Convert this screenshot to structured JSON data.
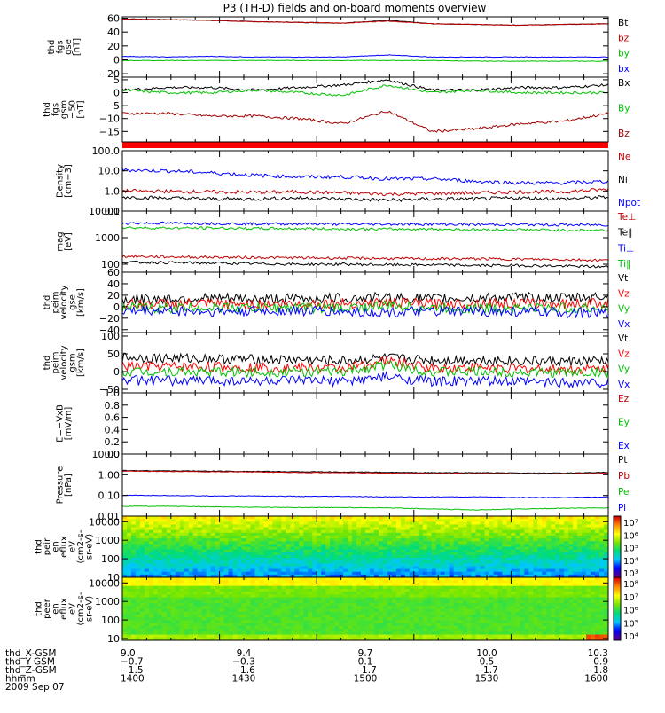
{
  "title": "P3 (TH-D) fields and on-board moments overview",
  "date": "2009 Sep 07",
  "ephemeris": {
    "rows": [
      {
        "name": "thd_X-GSM",
        "values": [
          "9.0",
          "9.4",
          "9.7",
          "10.0",
          "10.3"
        ]
      },
      {
        "name": "thd_Y-GSM",
        "values": [
          "−0.7",
          "−0.3",
          "0.1",
          "0.5",
          "0.9"
        ]
      },
      {
        "name": "thd_Z-GSM",
        "values": [
          "−1.5",
          "−1.6",
          "−1.7",
          "−1.7",
          "−1.8"
        ]
      },
      {
        "name": "hhmm",
        "values": [
          "1400",
          "1430",
          "1500",
          "1530",
          "1600"
        ]
      }
    ]
  },
  "chart_data": [
    {
      "type": "line",
      "ylabel": [
        "thd",
        "fgs",
        "gse",
        "[nT]"
      ],
      "ylim": [
        -25,
        62
      ],
      "ticks": [
        "60",
        "40",
        "20",
        "0",
        "−20"
      ],
      "tick_values": [
        60,
        40,
        20,
        0,
        -20
      ],
      "series": [
        {
          "name": "Bt",
          "color": "#000000",
          "values": [
            59,
            58,
            57,
            55,
            54,
            53,
            57,
            52,
            51,
            50,
            51,
            52
          ]
        },
        {
          "name": "bz",
          "color": "#c00000",
          "values": [
            59,
            58,
            57,
            55,
            54,
            53,
            56,
            52,
            51,
            50,
            51,
            52
          ]
        },
        {
          "name": "by",
          "color": "#00c000",
          "values": [
            -1,
            -1,
            -1,
            -1,
            -1,
            -1,
            -1,
            -1,
            -2,
            -2,
            -2,
            -2
          ]
        },
        {
          "name": "bx",
          "color": "#0000ff",
          "values": [
            5,
            4,
            5,
            4,
            4,
            4,
            7,
            4,
            4,
            4,
            4,
            4
          ]
        }
      ]
    },
    {
      "type": "line",
      "ylabel": [
        "thd",
        "fgs",
        "gsm",
        "−50",
        "[nT]"
      ],
      "ylim": [
        -19,
        6
      ],
      "ticks": [
        "5",
        "0",
        "−5",
        "−10",
        "−15"
      ],
      "tick_values": [
        5,
        0,
        -5,
        -10,
        -15
      ],
      "series": [
        {
          "name": "Bx",
          "color": "#000000",
          "values": [
            1,
            2,
            2,
            1,
            2,
            3,
            5,
            1,
            1,
            2,
            2,
            3
          ]
        },
        {
          "name": "By",
          "color": "#00c000",
          "values": [
            1,
            0,
            0,
            1,
            0,
            -1,
            3,
            0,
            1,
            0,
            0,
            0
          ]
        },
        {
          "name": "Bz",
          "color": "#a00000",
          "values": [
            -8,
            -8,
            -9,
            -9,
            -10,
            -12,
            -7,
            -15,
            -14,
            -12,
            -11,
            -8
          ]
        }
      ]
    },
    {
      "type": "line",
      "ylabel": [
        "Density",
        "[cm−3]"
      ],
      "scale": "log",
      "ylim": [
        0.1,
        100
      ],
      "ticks": [
        "100.0",
        "10.0",
        "1.0",
        "0.1"
      ],
      "tick_values": [
        100,
        10,
        1,
        0.1
      ],
      "series": [
        {
          "name": "Ne",
          "color": "#c00000",
          "values": [
            1.0,
            0.95,
            0.9,
            0.85,
            0.9,
            0.8,
            0.7,
            0.75,
            0.8,
            0.9,
            0.9,
            1.2
          ]
        },
        {
          "name": "Ni",
          "color": "#000000",
          "values": [
            0.5,
            0.45,
            0.4,
            0.4,
            0.45,
            0.4,
            0.35,
            0.4,
            0.4,
            0.45,
            0.4,
            0.5
          ]
        },
        {
          "name": "Npot",
          "color": "#0000ff",
          "values": [
            11,
            10,
            8,
            6,
            5,
            5,
            4,
            4,
            3,
            2.5,
            2.5,
            3
          ]
        }
      ]
    },
    {
      "type": "line",
      "ylabel": [
        "mag",
        "[eV]"
      ],
      "scale": "log",
      "ylim": [
        50,
        10000
      ],
      "ticks": [
        "10000",
        "1000",
        "100"
      ],
      "tick_values": [
        10000,
        1000,
        100
      ],
      "series": [
        {
          "name": "Te⊥",
          "color": "#c00000",
          "values": [
            200,
            190,
            185,
            180,
            175,
            170,
            165,
            160,
            160,
            155,
            150,
            140
          ]
        },
        {
          "name": "Te∥",
          "color": "#000000",
          "values": [
            120,
            115,
            110,
            105,
            100,
            100,
            95,
            95,
            90,
            90,
            85,
            80
          ]
        },
        {
          "name": "Ti⊥",
          "color": "#0000ff",
          "values": [
            3500,
            3500,
            3400,
            3300,
            3300,
            3200,
            3200,
            3200,
            3100,
            3100,
            3000,
            3000
          ]
        },
        {
          "name": "Ti∥",
          "color": "#00c000",
          "values": [
            2400,
            2300,
            2300,
            2200,
            2200,
            2100,
            2100,
            2100,
            2000,
            2000,
            1900,
            1900
          ]
        }
      ]
    },
    {
      "type": "line",
      "ylabel": [
        "thd",
        "peim",
        "velocity",
        "gse",
        "[km/s]"
      ],
      "ylim": [
        -45,
        60
      ],
      "ticks": [
        "60",
        "40",
        "20",
        "0",
        "−20",
        "−40"
      ],
      "tick_values": [
        60,
        40,
        20,
        0,
        -20,
        -40
      ],
      "series": [
        {
          "name": "Vt",
          "color": "#000000",
          "values": [
            12,
            14,
            15,
            13,
            14,
            15,
            16,
            14,
            15,
            16,
            15,
            18
          ]
        },
        {
          "name": "Vz",
          "color": "#ff0000",
          "values": [
            4,
            5,
            5,
            4,
            5,
            6,
            7,
            5,
            6,
            6,
            5,
            7
          ]
        },
        {
          "name": "Vy",
          "color": "#00c000",
          "values": [
            -2,
            -2,
            -1,
            -2,
            -1,
            -3,
            2,
            -2,
            -3,
            -2,
            -2,
            -3
          ]
        },
        {
          "name": "Vx",
          "color": "#0000ff",
          "values": [
            -8,
            -7,
            -9,
            -8,
            -7,
            -9,
            -10,
            -9,
            -8,
            -9,
            -10,
            -12
          ]
        }
      ]
    },
    {
      "type": "line",
      "ylabel": [
        "thd",
        "peim",
        "velocity",
        "gsm",
        "[km/s]"
      ],
      "ylim": [
        -60,
        110
      ],
      "ticks": [
        "100",
        "50",
        "0",
        "−50"
      ],
      "tick_values": [
        100,
        50,
        0,
        -50
      ],
      "series": [
        {
          "name": "Vt",
          "color": "#000000",
          "values": [
            40,
            38,
            36,
            34,
            33,
            30,
            38,
            32,
            33,
            30,
            28,
            30
          ]
        },
        {
          "name": "Vz",
          "color": "#ff0000",
          "values": [
            15,
            14,
            13,
            12,
            10,
            9,
            30,
            10,
            12,
            8,
            6,
            8
          ]
        },
        {
          "name": "Vy",
          "color": "#00c000",
          "values": [
            0,
            0,
            -1,
            -2,
            0,
            -2,
            20,
            -1,
            0,
            -2,
            -3,
            -2
          ]
        },
        {
          "name": "Vx",
          "color": "#0000ff",
          "values": [
            -25,
            -26,
            -25,
            -27,
            -26,
            -28,
            -15,
            -28,
            -27,
            -29,
            -30,
            -31
          ]
        }
      ]
    },
    {
      "type": "line",
      "ylabel": [
        "E=−VxB",
        "[mV/m]"
      ],
      "ylim": [
        0,
        1.0
      ],
      "ticks": [
        "1.0",
        "0.8",
        "0.6",
        "0.4",
        "0.2",
        "0.0"
      ],
      "tick_values": [
        1.0,
        0.8,
        0.6,
        0.4,
        0.2,
        0.0
      ],
      "series": [
        {
          "name": "Ez",
          "color": "#c00000",
          "values": []
        },
        {
          "name": "Ey",
          "color": "#00c000",
          "values": []
        },
        {
          "name": "Ex",
          "color": "#0000ff",
          "values": []
        }
      ]
    },
    {
      "type": "line",
      "ylabel": [
        "Pressure",
        "[nPa]"
      ],
      "scale": "log",
      "ylim": [
        0.01,
        10
      ],
      "ticks": [
        "10.00",
        "1.00",
        "0.10",
        "0.01"
      ],
      "tick_values": [
        10,
        1,
        0.1,
        0.01
      ],
      "series": [
        {
          "name": "Pt",
          "color": "#000000",
          "values": [
            1.6,
            1.55,
            1.5,
            1.45,
            1.4,
            1.35,
            1.3,
            1.25,
            1.25,
            1.2,
            1.2,
            1.3
          ]
        },
        {
          "name": "Pb",
          "color": "#c00000",
          "values": [
            1.5,
            1.45,
            1.4,
            1.35,
            1.3,
            1.25,
            1.2,
            1.15,
            1.15,
            1.1,
            1.1,
            1.2
          ]
        },
        {
          "name": "Pe",
          "color": "#00c000",
          "values": [
            0.03,
            0.03,
            0.028,
            0.027,
            0.026,
            0.026,
            0.025,
            0.022,
            0.02,
            0.022,
            0.024,
            0.025
          ]
        },
        {
          "name": "Pi",
          "color": "#0000ff",
          "values": [
            0.1,
            0.1,
            0.095,
            0.095,
            0.09,
            0.09,
            0.085,
            0.085,
            0.085,
            0.08,
            0.08,
            0.085
          ]
        }
      ]
    },
    {
      "type": "heatmap",
      "ylabel": [
        "thd",
        "peir",
        "en",
        "eflux",
        "eV",
        "(cm2-s-",
        "sr-eV)"
      ],
      "scale": "log",
      "ylim": [
        10,
        20000
      ],
      "ticks": [
        "10000",
        "1000",
        "100",
        "10"
      ],
      "tick_values": [
        10000,
        1000,
        100,
        10
      ],
      "colorbar": {
        "ticks": [
          "10⁷",
          "10⁶",
          "10⁵",
          "10⁴",
          "10³"
        ]
      },
      "levels": [
        [
          3,
          3.2,
          3.5,
          4.5,
          5,
          5.2,
          5.3
        ],
        [
          3.1,
          3.3,
          3.4,
          4.4,
          5,
          5.2,
          5.3
        ]
      ]
    },
    {
      "type": "heatmap",
      "ylabel": [
        "thd",
        "peer",
        "en",
        "eflux",
        "eV",
        "(cm2-s-",
        "sr-eV)"
      ],
      "scale": "log",
      "ylim": [
        8,
        20000
      ],
      "ticks": [
        "10000",
        "1000",
        "100",
        "10"
      ],
      "tick_values": [
        10000,
        1000,
        100,
        10
      ],
      "colorbar": {
        "ticks": [
          "10⁸",
          "10⁷",
          "10⁶",
          "10⁵",
          "10⁴"
        ]
      },
      "levels": [
        [
          6.5,
          6.2,
          5.8,
          5.6,
          5.5,
          5.7,
          6.3
        ],
        [
          6.4,
          6.0,
          5.6,
          5.4,
          5.3,
          5.5,
          6.2
        ]
      ]
    }
  ]
}
